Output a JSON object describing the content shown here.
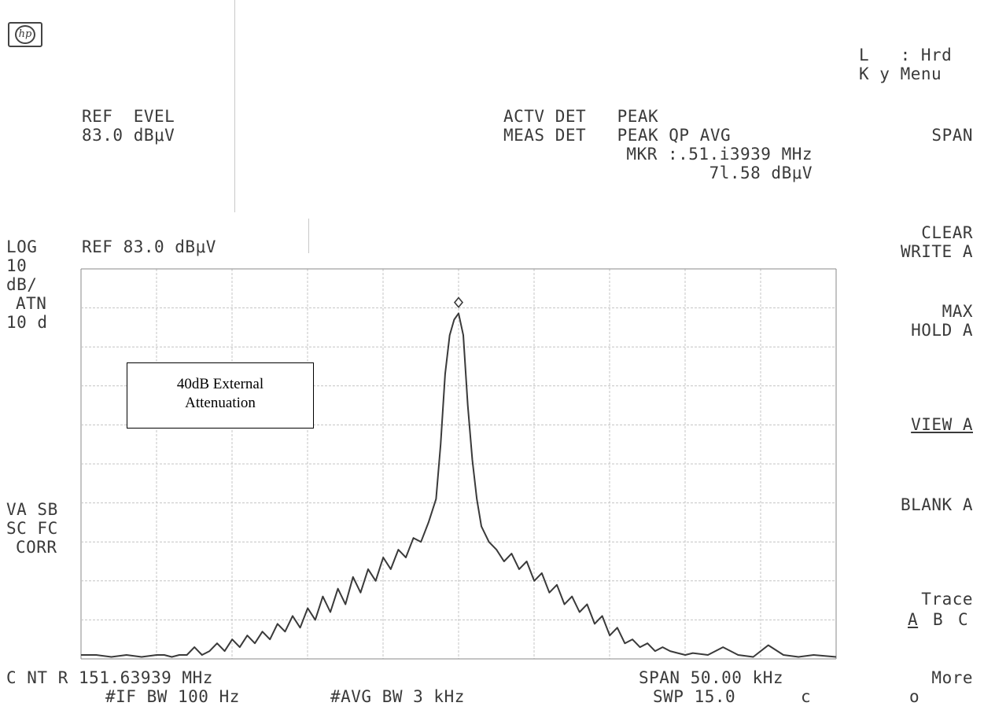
{
  "logo_text": "hp",
  "header": {
    "ref_level_label": "REF  EVEL",
    "ref_level_value": "83.0 dBμV",
    "actv_det": "ACTV DET   PEAK",
    "meas_det": "MEAS DET   PEAK QP AVG",
    "marker_freq": "MKR :.51.i3939 MHz",
    "marker_level": "7l.58 dBμV"
  },
  "left_panel": {
    "scale_line1": "LOG",
    "scale_line2": "10",
    "scale_line3": "dB/",
    "atn_line1": "ATN",
    "atn_line2": "10 d",
    "status_line1": "VA SB",
    "status_line2": "SC FC",
    "status_line3": "CORR"
  },
  "ref_label": "REF 83.0 dBμV",
  "annotation": {
    "line1": "40dB External",
    "line2": "Attenuation"
  },
  "footer": {
    "center_label": "C NT R 151.63939 MHz",
    "if_bw": "#IF BW 100 Hz",
    "avg_bw": "#AVG BW 3 kHz",
    "span": "SPAN 50.00 kHz",
    "sweep": "SWP 15.0",
    "sweep_unit": "c"
  },
  "softkeys": {
    "key_menu_line1": "L   : Hrd",
    "key_menu_line2": "K y Menu",
    "span": "SPAN",
    "clear_write_line1": "CLEAR",
    "clear_write_line2": "WRITE A",
    "max_hold_line1": "MAX",
    "max_hold_line2": "HOLD A",
    "view": "VIEW A",
    "blank": "BLANK A",
    "trace_line1": "Trace",
    "trace_a": "A",
    "trace_b": "B",
    "trace_c": "C",
    "more_line1": "More",
    "more_line2": "o"
  },
  "colors": {
    "trace": "#3a3a3a",
    "grid": "#c4c4c4",
    "border": "#8a8a8a"
  },
  "chart_data": {
    "type": "line",
    "title": "",
    "xlabel": "",
    "ylabel": "",
    "x_unit": "MHz",
    "y_unit": "dBμV",
    "xlim": [
      151.61439,
      151.66439
    ],
    "ylim": [
      -17.0,
      83.0
    ],
    "x_divisions": 10,
    "y_divisions": 10,
    "grid": true,
    "marker": {
      "x": 151.63939,
      "y": 71.58
    },
    "series": [
      {
        "x": [
          151.61439,
          151.6154,
          151.6164,
          151.6174,
          151.6184,
          151.6194,
          151.6199,
          151.6204,
          151.6209,
          151.6214,
          151.6219,
          151.6224,
          151.6229,
          151.6234,
          151.6239,
          151.6244,
          151.6249,
          151.6254,
          151.6259,
          151.6264,
          151.6269,
          151.6274,
          151.6279,
          151.6284,
          151.6289,
          151.6294,
          151.6299,
          151.6304,
          151.6309,
          151.6314,
          151.6319,
          151.6324,
          151.6329,
          151.6334,
          151.6339,
          151.6344,
          151.6349,
          151.6354,
          151.6359,
          151.6364,
          151.6369,
          151.6374,
          151.6379,
          151.6382,
          151.6385,
          151.6388,
          151.6391,
          151.63939,
          151.6397,
          151.64,
          151.6403,
          151.6406,
          151.6409,
          151.6414,
          151.6419,
          151.6424,
          151.6429,
          151.6434,
          151.6439,
          151.6444,
          151.6449,
          151.6454,
          151.6459,
          151.6464,
          151.6469,
          151.6474,
          151.6479,
          151.6484,
          151.6489,
          151.6494,
          151.6499,
          151.6504,
          151.6509,
          151.6514,
          151.6519,
          151.6524,
          151.6529,
          151.6534,
          151.6539,
          151.6544,
          151.6549,
          151.6559,
          151.6569,
          151.6579,
          151.6589,
          151.6599,
          151.6609,
          151.6619,
          151.6629,
          151.66439
        ],
        "y": [
          -16,
          -16,
          -16.5,
          -16,
          -16.5,
          -16,
          -16,
          -16.5,
          -16,
          -16,
          -14,
          -16,
          -15,
          -13,
          -15,
          -12,
          -14,
          -11,
          -13,
          -10,
          -12,
          -8,
          -10,
          -6,
          -9,
          -4,
          -7,
          -1,
          -5,
          1,
          -3,
          4,
          0,
          6,
          3,
          9,
          6,
          11,
          9,
          14,
          13,
          18,
          24,
          38,
          56,
          66,
          70,
          71.58,
          66,
          48,
          34,
          24,
          17,
          13,
          11,
          8,
          10,
          6,
          8,
          3,
          5,
          0,
          2,
          -3,
          -1,
          -5,
          -3,
          -8,
          -6,
          -11,
          -9,
          -13,
          -12,
          -14,
          -13,
          -15,
          -14,
          -15,
          -15.5,
          -16,
          -15.5,
          -16,
          -14,
          -16,
          -16.5,
          -13.5,
          -16,
          -16.5,
          -16,
          -16.5
        ]
      }
    ]
  }
}
